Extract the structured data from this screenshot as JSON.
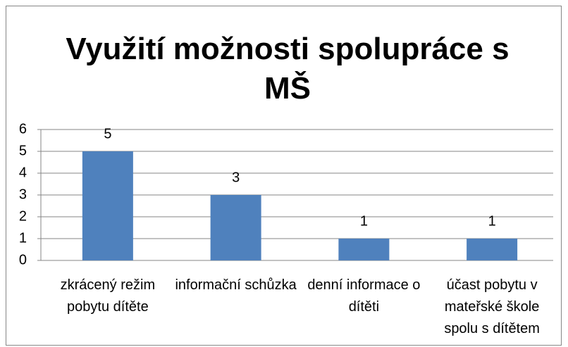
{
  "chart_data": {
    "type": "bar",
    "title": "Využití možnosti spolupráce s MŠ",
    "categories": [
      "zkrácený režim pobytu dítěte",
      "informační schůzka",
      "denní informace o dítěti",
      "účast pobytu v mateřské škole spolu s dítětem"
    ],
    "values": [
      5,
      3,
      1,
      1
    ],
    "color": "#4f81bd",
    "ylim": [
      0,
      6
    ],
    "yticks": [
      0,
      1,
      2,
      3,
      4,
      5,
      6
    ],
    "grid": true,
    "data_labels": true
  }
}
